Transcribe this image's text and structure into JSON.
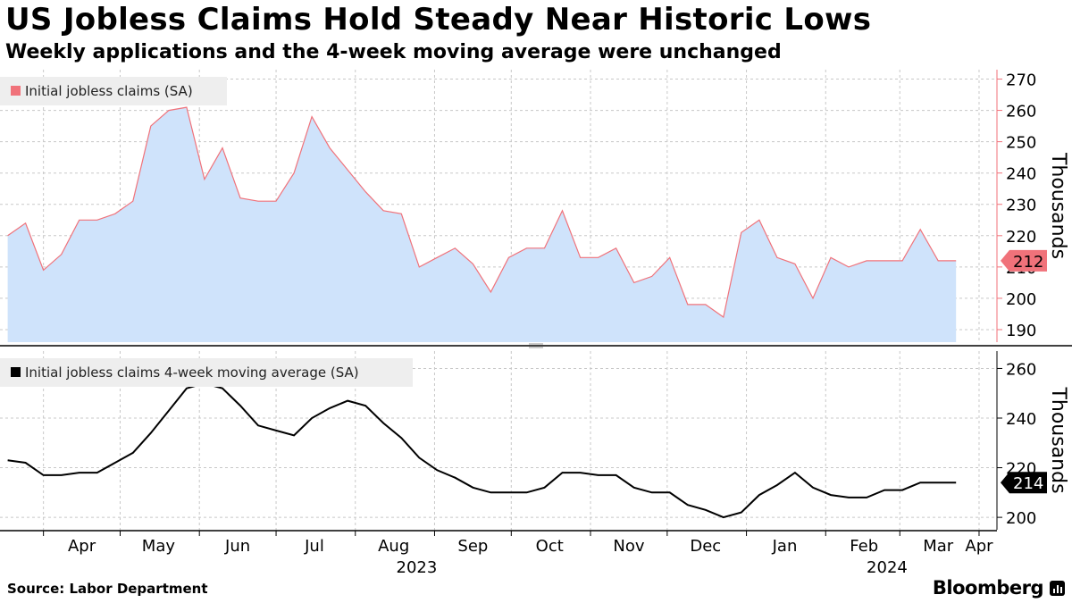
{
  "title": "US Jobless Claims Hold Steady Near Historic Lows",
  "subtitle": "Weekly applications and the 4-week moving average were unchanged",
  "source": "Source: Labor Department",
  "brand": "Bloomberg",
  "colors": {
    "claims_line": "#f0727a",
    "claims_fill": "#cfe3fb",
    "claims_flag": "#f0727a",
    "ma_line": "#000000",
    "ma_flag": "#000000",
    "legend_bg": "#eeeeee",
    "grid": "#c8c8c8",
    "axis": "#f0727a"
  },
  "chart_data": [
    {
      "type": "area",
      "series_name": "Initial jobless claims (SA)",
      "legend": "Initial jobless claims (SA)",
      "unit_label": "Thousands",
      "x_axis": "date",
      "start_date": "2023-03-18",
      "interval": "weekly",
      "values": [
        220,
        224,
        209,
        214,
        225,
        225,
        227,
        231,
        255,
        260,
        261,
        238,
        248,
        232,
        231,
        231,
        240,
        258,
        248,
        241,
        234,
        228,
        227,
        210,
        213,
        216,
        211,
        202,
        213,
        216,
        216,
        228,
        213,
        213,
        216,
        205,
        207,
        213,
        198,
        198,
        194,
        221,
        225,
        213,
        211,
        200,
        213,
        210,
        212,
        212,
        212,
        222,
        212,
        212
      ],
      "ylim": [
        186,
        273
      ],
      "yticks": [
        190,
        200,
        210,
        220,
        230,
        240,
        250,
        260,
        270
      ],
      "last_value_label": "212"
    },
    {
      "type": "line",
      "series_name": "Initial jobless claims 4-week moving average (SA)",
      "legend": "Initial jobless claims 4-week moving average (SA)",
      "unit_label": "Thousands",
      "x_axis": "date",
      "start_date": "2023-03-18",
      "interval": "weekly",
      "values": [
        223,
        222,
        217,
        217,
        218,
        218,
        222,
        226,
        234,
        243,
        252,
        254,
        252,
        245,
        237,
        235,
        233,
        240,
        244,
        247,
        245,
        238,
        232,
        224,
        219,
        216,
        212,
        210,
        210,
        210,
        212,
        218,
        218,
        217,
        217,
        212,
        210,
        210,
        205,
        203,
        200,
        202,
        209,
        213,
        218,
        212,
        209,
        208,
        208,
        211,
        211,
        214,
        214,
        214
      ],
      "ylim": [
        195,
        267
      ],
      "yticks": [
        200,
        220,
        240,
        260
      ],
      "last_value_label": "214"
    }
  ],
  "x_axis": {
    "month_labels": [
      "Apr",
      "May",
      "Jun",
      "Jul",
      "Aug",
      "Sep",
      "Oct",
      "Nov",
      "Dec",
      "Jan",
      "Feb",
      "Mar",
      "Apr"
    ],
    "year_labels": [
      "2023",
      "2024"
    ]
  }
}
